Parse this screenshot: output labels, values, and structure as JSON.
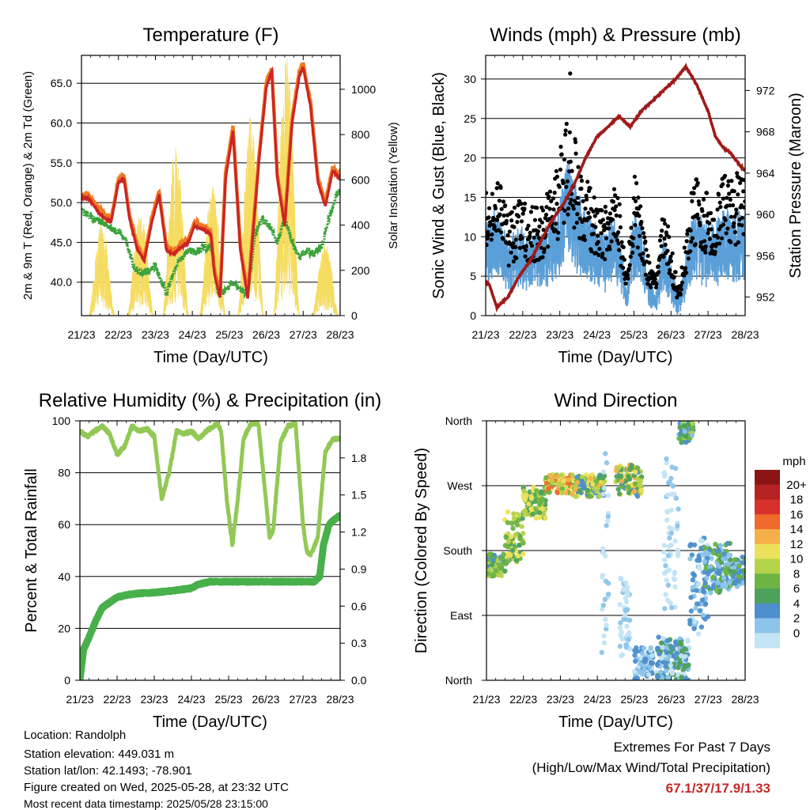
{
  "colors": {
    "temp2m": "#cc2424",
    "temp9m": "#f07a22",
    "dewpoint": "#3aa23a",
    "solar": "#f5dc60",
    "wind": "#5b9fd8",
    "gust": "#000000",
    "pressure": "#a01a1a",
    "rh": "#92c855",
    "precip": "#48b04a",
    "extremes": "#c22a2a"
  },
  "info": {
    "location": "Location: Randolph",
    "elevation": "Station elevation: 449.031 m",
    "latlon": "Station lat/lon: 42.1493; -78.901",
    "created": "Figure created on Wed, 2025-05-28, at 23:32 UTC",
    "latest": "Most recent data timestamp: 2025/05/28 23:15:00"
  },
  "extremes": {
    "title": "Extremes For Past 7 Days",
    "subtitle": "(High/Low/Max Wind/Total Precipitation)",
    "values": "67.1/37/17.9/1.33"
  },
  "chart_data": [
    {
      "type": "line",
      "title": "Temperature (F)",
      "xlabel": "Time (Day/UTC)",
      "ylabel": "2m & 9m T (Red, Orange) & 2m Td (Green)",
      "y2label": "Solar Insolation (Yellow)",
      "xticks": [
        "21/23",
        "22/23",
        "23/23",
        "24/23",
        "25/23",
        "26/23",
        "27/23",
        "28/23"
      ],
      "xlim": [
        0,
        7
      ],
      "ylim": [
        35.8,
        68.5
      ],
      "yticks": [
        "40.0",
        "45.0",
        "50.0",
        "55.0",
        "60.0",
        "65.0"
      ],
      "y2lim": [
        0,
        1150
      ],
      "y2ticks": [
        "0",
        "200",
        "400",
        "600",
        "800",
        "1000"
      ],
      "series": [
        {
          "key": "temp2m",
          "x": [
            0,
            0.2,
            0.5,
            0.8,
            1.0,
            1.15,
            1.3,
            1.5,
            1.7,
            1.9,
            2.1,
            2.3,
            2.5,
            2.7,
            2.9,
            3.05,
            3.3,
            3.5,
            3.6,
            3.75,
            3.9,
            4.0,
            4.1,
            4.3,
            4.5,
            4.8,
            5.0,
            5.15,
            5.3,
            5.5,
            5.7,
            5.9,
            6.0,
            6.2,
            6.4,
            6.6,
            6.8,
            7.0
          ],
          "y": [
            50.6,
            50.5,
            48.5,
            47.5,
            52.5,
            53.0,
            48.0,
            44.3,
            42.7,
            47.5,
            51.0,
            44.0,
            43.5,
            44.4,
            45.0,
            47.0,
            46.6,
            46.0,
            41.0,
            38.0,
            53.0,
            56.0,
            59.0,
            44.0,
            38.0,
            55.0,
            64.5,
            66.5,
            53.0,
            47.0,
            60.0,
            66.0,
            67.0,
            62.0,
            52.5,
            49.5,
            54.0,
            53.0
          ]
        },
        {
          "key": "temp9m",
          "x": [
            0,
            0.2,
            0.5,
            0.8,
            1.0,
            1.15,
            1.3,
            1.5,
            1.7,
            1.9,
            2.1,
            2.3,
            2.5,
            2.7,
            2.9,
            3.05,
            3.3,
            3.5,
            3.6,
            3.75,
            3.9,
            4.0,
            4.1,
            4.3,
            4.5,
            4.8,
            5.0,
            5.15,
            5.3,
            5.5,
            5.7,
            5.9,
            6.0,
            6.2,
            6.4,
            6.6,
            6.8,
            7.0
          ],
          "y": [
            51.0,
            50.8,
            49.0,
            47.8,
            53.0,
            53.4,
            48.4,
            44.7,
            43.0,
            48.0,
            51.4,
            44.4,
            43.9,
            44.8,
            45.4,
            47.5,
            47.1,
            46.3,
            41.4,
            38.5,
            53.8,
            56.5,
            59.5,
            44.5,
            38.6,
            55.6,
            65.0,
            66.9,
            53.5,
            47.5,
            60.6,
            66.6,
            67.4,
            62.5,
            53.0,
            50.0,
            54.4,
            53.3
          ]
        },
        {
          "key": "dewpoint",
          "x": [
            0,
            0.3,
            0.6,
            0.9,
            1.2,
            1.4,
            1.6,
            1.8,
            2.0,
            2.3,
            2.6,
            2.9,
            3.1,
            3.3,
            3.5,
            3.7,
            3.9,
            4.1,
            4.3,
            4.5,
            4.7,
            4.9,
            5.1,
            5.3,
            5.5,
            5.7,
            5.9,
            6.1,
            6.3,
            6.5,
            6.7,
            6.9,
            7.0
          ],
          "y": [
            49.0,
            48.0,
            47.5,
            46.5,
            45.5,
            42.0,
            41.0,
            41.5,
            42.0,
            38.5,
            42.5,
            44.0,
            43.8,
            44.4,
            44.5,
            38.5,
            39.0,
            40.0,
            39.0,
            38.5,
            46.0,
            48.0,
            47.0,
            45.0,
            48.0,
            45.0,
            43.0,
            44.0,
            43.5,
            44.5,
            48.0,
            51.0,
            51.5
          ]
        },
        {
          "key": "solar",
          "peaks": [
            [
              0.55,
              420
            ],
            [
              1.6,
              450
            ],
            [
              2.55,
              760
            ],
            [
              3.55,
              580
            ],
            [
              4.58,
              900
            ],
            [
              5.55,
              1150
            ],
            [
              6.6,
              320
            ]
          ]
        }
      ]
    },
    {
      "type": "scatter",
      "title": "Winds (mph) & Pressure (mb)",
      "xlabel": "Time (Day/UTC)",
      "ylabel": "Sonic Wind & Gust (Blue, Black)",
      "y2label": "Station Pressure (Maroon)",
      "xticks": [
        "21/23",
        "22/23",
        "23/23",
        "24/23",
        "25/23",
        "26/23",
        "27/23",
        "28/23"
      ],
      "xlim": [
        0,
        7
      ],
      "ylim": [
        0,
        33
      ],
      "yticks": [
        "0",
        "5",
        "10",
        "15",
        "20",
        "25",
        "30"
      ],
      "y2lim": [
        950.2,
        975.4
      ],
      "y2ticks": [
        "952",
        "956",
        "960",
        "964",
        "968",
        "972"
      ],
      "gust_envelope": {
        "x": [
          0,
          0.3,
          0.6,
          0.9,
          1.2,
          1.5,
          1.8,
          2.0,
          2.2,
          2.4,
          2.6,
          2.8,
          3.0,
          3.2,
          3.4,
          3.6,
          3.8,
          4.0,
          4.2,
          4.4,
          4.6,
          4.8,
          5.0,
          5.2,
          5.4,
          5.6,
          5.8,
          6.0,
          6.2,
          6.4,
          6.6,
          6.8,
          7.0
        ],
        "y": [
          14,
          16,
          11,
          13,
          12,
          13,
          14,
          18,
          23,
          20,
          16,
          15,
          13,
          12,
          15,
          13,
          5,
          16,
          13,
          6,
          4,
          13,
          8,
          3,
          9,
          16,
          15,
          14,
          13,
          16,
          15,
          16,
          16
        ]
      },
      "max_gust": 30.7,
      "pressure": {
        "x": [
          0,
          0.1,
          0.3,
          0.6,
          0.9,
          1.2,
          1.5,
          1.8,
          2.1,
          2.4,
          2.7,
          3.0,
          3.3,
          3.6,
          3.9,
          4.2,
          4.5,
          4.8,
          5.1,
          5.4,
          5.7,
          6.0,
          6.2,
          6.4,
          6.6,
          6.8,
          7.0
        ],
        "y": [
          953.5,
          953.2,
          951.0,
          952.0,
          954.0,
          955.5,
          957.5,
          959.5,
          961.0,
          963.0,
          965.5,
          967.5,
          968.5,
          969.5,
          968.5,
          970.0,
          971.0,
          972.0,
          973.0,
          974.3,
          972.5,
          970.0,
          967.5,
          966.5,
          966.0,
          965.0,
          964.2
        ]
      }
    },
    {
      "type": "line",
      "title": "Relative Humidity (%) & Precipitation (in)",
      "xlabel": "Time (Day/UTC)",
      "ylabel": "Percent & Total Rainfall",
      "xticks": [
        "21/23",
        "22/23",
        "23/23",
        "24/23",
        "25/23",
        "26/23",
        "27/23",
        "28/23"
      ],
      "xlim": [
        0,
        7
      ],
      "ylim": [
        0,
        100
      ],
      "yticks": [
        "0",
        "20",
        "40",
        "60",
        "80",
        "100"
      ],
      "y2lim": [
        0,
        2.1
      ],
      "y2ticks": [
        "0.0",
        "0.3",
        "0.6",
        "0.9",
        "1.2",
        "1.5",
        "1.8"
      ],
      "series": [
        {
          "key": "rh",
          "x": [
            0,
            0.2,
            0.4,
            0.6,
            0.8,
            1.0,
            1.2,
            1.4,
            1.6,
            1.8,
            2.0,
            2.2,
            2.4,
            2.6,
            2.8,
            3.0,
            3.2,
            3.4,
            3.6,
            3.7,
            3.8,
            3.95,
            4.1,
            4.25,
            4.4,
            4.6,
            4.8,
            5.0,
            5.1,
            5.2,
            5.4,
            5.6,
            5.8,
            6.0,
            6.1,
            6.2,
            6.4,
            6.6,
            6.8,
            7.0
          ],
          "y": [
            96,
            94,
            96,
            98,
            95,
            87,
            90,
            98,
            96,
            97,
            94,
            70,
            80,
            96,
            95,
            96,
            93,
            96,
            98,
            99,
            96,
            70,
            52,
            70,
            93,
            99,
            99,
            70,
            55,
            58,
            92,
            98,
            99,
            60,
            50,
            48,
            55,
            88,
            93,
            93
          ]
        },
        {
          "key": "precip",
          "x": [
            0,
            0.1,
            0.2,
            0.4,
            0.6,
            0.8,
            1.0,
            1.3,
            1.6,
            2.0,
            2.5,
            3.0,
            3.2,
            3.5,
            4.0,
            4.5,
            5.0,
            5.5,
            6.0,
            6.3,
            6.45,
            6.55,
            6.7,
            6.85,
            7.0
          ],
          "y": [
            0,
            12,
            15,
            22,
            28,
            30,
            32,
            33,
            33.5,
            33.8,
            34.5,
            35.5,
            37,
            38,
            38,
            38,
            38,
            38,
            38,
            38,
            40,
            52,
            60,
            62,
            63.5
          ]
        }
      ]
    },
    {
      "type": "scatter",
      "title": "Wind Direction",
      "xlabel": "Time (Day/UTC)",
      "ylabel": "Direction (Colored By Speed)",
      "xticks": [
        "21/23",
        "22/23",
        "23/23",
        "24/23",
        "25/23",
        "26/23",
        "27/23",
        "28/23"
      ],
      "xlim": [
        0,
        7
      ],
      "ylim": [
        0,
        360
      ],
      "yticks": [
        "North",
        "East",
        "South",
        "West",
        "North"
      ],
      "colorbar": {
        "title": "mph",
        "labels": [
          "0",
          "2",
          "4",
          "6",
          "8",
          "10",
          "12",
          "14",
          "16",
          "18",
          "20+"
        ],
        "colors": [
          "#c2e4f4",
          "#8cc4ea",
          "#4d8fcc",
          "#4ea15a",
          "#6db445",
          "#b5d34a",
          "#ece15a",
          "#f6b04a",
          "#ee6a2c",
          "#d8302a",
          "#b42224",
          "#8a1414"
        ]
      },
      "clusters": [
        {
          "x": [
            0,
            0.5
          ],
          "dir": [
            145,
            175
          ],
          "speed": [
            4,
            12
          ]
        },
        {
          "x": [
            0.5,
            1.0
          ],
          "dir": [
            160,
            235
          ],
          "speed": [
            6,
            14
          ]
        },
        {
          "x": [
            1.0,
            1.6
          ],
          "dir": [
            225,
            268
          ],
          "speed": [
            6,
            14
          ]
        },
        {
          "x": [
            1.6,
            2.3
          ],
          "dir": [
            260,
            285
          ],
          "speed": [
            8,
            18
          ]
        },
        {
          "x": [
            2.3,
            3.2
          ],
          "dir": [
            255,
            285
          ],
          "speed": [
            4,
            16
          ]
        },
        {
          "x": [
            3.1,
            3.3
          ],
          "dir": [
            20,
            360
          ],
          "speed": [
            0,
            3
          ]
        },
        {
          "x": [
            3.5,
            4.2
          ],
          "dir": [
            255,
            300
          ],
          "speed": [
            4,
            16
          ]
        },
        {
          "x": [
            3.6,
            3.9
          ],
          "dir": [
            30,
            150
          ],
          "speed": [
            0,
            3
          ]
        },
        {
          "x": [
            4.0,
            4.5
          ],
          "dir": [
            2,
            45
          ],
          "speed": [
            1,
            6
          ]
        },
        {
          "x": [
            4.6,
            5.3
          ],
          "dir": [
            0,
            60
          ],
          "speed": [
            1,
            8
          ]
        },
        {
          "x": [
            4.8,
            5.2
          ],
          "dir": [
            90,
            320
          ],
          "speed": [
            0,
            3
          ]
        },
        {
          "x": [
            5.2,
            5.6
          ],
          "dir": [
            330,
            360
          ],
          "speed": [
            3,
            12
          ]
        },
        {
          "x": [
            5.2,
            5.5
          ],
          "dir": [
            0,
            60
          ],
          "speed": [
            1,
            8
          ]
        },
        {
          "x": [
            5.5,
            6.0
          ],
          "dir": [
            60,
            200
          ],
          "speed": [
            1,
            6
          ]
        },
        {
          "x": [
            5.9,
            6.6
          ],
          "dir": [
            120,
            190
          ],
          "speed": [
            2,
            10
          ]
        },
        {
          "x": [
            6.4,
            7.0
          ],
          "dir": [
            130,
            175
          ],
          "speed": [
            2,
            9
          ]
        }
      ]
    }
  ]
}
